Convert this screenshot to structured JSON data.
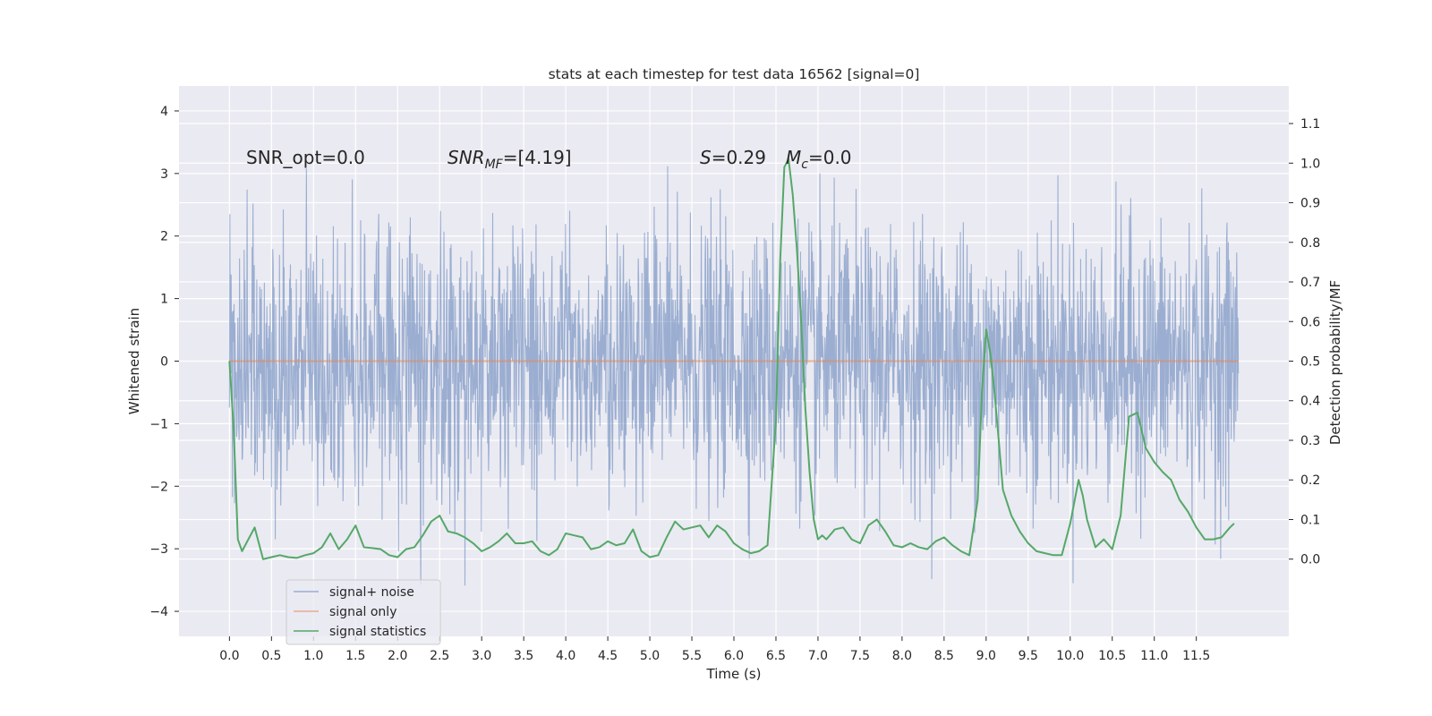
{
  "chart_data": {
    "type": "line",
    "title": "stats at each timestep for test data 16562 [signal=0]",
    "xlabel": "Time (s)",
    "ylabel": "Whitened strain",
    "y2label": "Detection probability/MF",
    "xlim": [
      -0.6,
      12.6
    ],
    "ylim": [
      -4.4,
      4.4
    ],
    "y2lim": [
      -0.195,
      1.195
    ],
    "xticks": [
      0.0,
      0.5,
      1.0,
      1.5,
      2.0,
      2.5,
      3.0,
      3.5,
      4.0,
      4.5,
      5.0,
      5.5,
      6.0,
      6.5,
      7.0,
      7.5,
      8.0,
      8.5,
      9.0,
      9.5,
      10.0,
      10.5,
      11.0,
      11.5
    ],
    "yticks": [
      -4,
      -3,
      -2,
      -1,
      0,
      1,
      2,
      3,
      4
    ],
    "y2ticks": [
      0.0,
      0.1,
      0.2,
      0.3,
      0.4,
      0.5,
      0.6,
      0.7,
      0.8,
      0.9,
      1.0,
      1.1
    ],
    "grid": true,
    "legend_position": "lower-left",
    "annotations": {
      "snr_opt": "SNR_opt=0.0",
      "snr_mf_main": "SNR",
      "snr_mf_sub": "MF",
      "snr_mf_value": "=[4.19]",
      "s_main": "S",
      "s_value": "=0.29",
      "mc_main": "M",
      "mc_sub": "c",
      "mc_value": "=0.0"
    },
    "series": [
      {
        "name": "signal+ noise",
        "axis": "left",
        "color": "#4c72b0",
        "opacity": 0.5,
        "t_range": [
          0.0,
          12.0
        ],
        "description_values": "whitened noise, approx. gaussian, sigma ~1, peaks to +3.9 and -4.0",
        "envelope_max": 3.95,
        "envelope_min": -4.05
      },
      {
        "name": "signal only",
        "axis": "left",
        "color": "#dd8452",
        "opacity": 0.6,
        "x": [
          0.0,
          12.0
        ],
        "y": [
          0.0,
          0.0
        ]
      },
      {
        "name": "signal statistics",
        "axis": "right",
        "color": "#55a868",
        "x": [
          0.0,
          0.05,
          0.1,
          0.15,
          0.2,
          0.3,
          0.4,
          0.5,
          0.6,
          0.7,
          0.8,
          0.9,
          1.0,
          1.1,
          1.2,
          1.3,
          1.4,
          1.5,
          1.6,
          1.7,
          1.8,
          1.9,
          2.0,
          2.1,
          2.2,
          2.3,
          2.4,
          2.5,
          2.6,
          2.7,
          2.8,
          2.9,
          3.0,
          3.1,
          3.2,
          3.3,
          3.4,
          3.5,
          3.6,
          3.7,
          3.8,
          3.9,
          4.0,
          4.1,
          4.2,
          4.3,
          4.4,
          4.5,
          4.6,
          4.7,
          4.8,
          4.9,
          5.0,
          5.1,
          5.2,
          5.3,
          5.4,
          5.5,
          5.6,
          5.7,
          5.8,
          5.9,
          6.0,
          6.1,
          6.2,
          6.3,
          6.4,
          6.5,
          6.55,
          6.6,
          6.65,
          6.7,
          6.75,
          6.8,
          6.85,
          6.9,
          6.95,
          7.0,
          7.05,
          7.1,
          7.2,
          7.3,
          7.4,
          7.5,
          7.6,
          7.7,
          7.8,
          7.9,
          8.0,
          8.1,
          8.2,
          8.3,
          8.4,
          8.5,
          8.6,
          8.7,
          8.8,
          8.9,
          8.95,
          9.0,
          9.05,
          9.1,
          9.15,
          9.2,
          9.3,
          9.4,
          9.5,
          9.6,
          9.7,
          9.8,
          9.9,
          10.0,
          10.1,
          10.15,
          10.2,
          10.3,
          10.4,
          10.5,
          10.6,
          10.7,
          10.8,
          10.9,
          11.0,
          11.1,
          11.2,
          11.3,
          11.4,
          11.5,
          11.6,
          11.7,
          11.8,
          11.9,
          11.95
        ],
        "y": [
          0.5,
          0.33,
          0.05,
          0.02,
          0.04,
          0.08,
          0.0,
          0.005,
          0.01,
          0.005,
          0.003,
          0.01,
          0.015,
          0.03,
          0.065,
          0.025,
          0.05,
          0.085,
          0.03,
          0.028,
          0.025,
          0.01,
          0.005,
          0.025,
          0.03,
          0.06,
          0.095,
          0.11,
          0.07,
          0.065,
          0.055,
          0.04,
          0.02,
          0.03,
          0.045,
          0.065,
          0.04,
          0.04,
          0.045,
          0.02,
          0.01,
          0.025,
          0.065,
          0.06,
          0.055,
          0.025,
          0.03,
          0.045,
          0.035,
          0.04,
          0.075,
          0.02,
          0.005,
          0.01,
          0.055,
          0.095,
          0.075,
          0.08,
          0.085,
          0.055,
          0.085,
          0.07,
          0.04,
          0.025,
          0.015,
          0.02,
          0.035,
          0.35,
          0.75,
          0.99,
          1.01,
          0.92,
          0.78,
          0.6,
          0.38,
          0.22,
          0.1,
          0.05,
          0.06,
          0.05,
          0.075,
          0.08,
          0.05,
          0.04,
          0.085,
          0.1,
          0.07,
          0.035,
          0.03,
          0.04,
          0.03,
          0.025,
          0.045,
          0.055,
          0.035,
          0.02,
          0.01,
          0.15,
          0.42,
          0.58,
          0.52,
          0.42,
          0.3,
          0.175,
          0.11,
          0.07,
          0.04,
          0.02,
          0.015,
          0.01,
          0.01,
          0.09,
          0.2,
          0.16,
          0.1,
          0.03,
          0.05,
          0.025,
          0.11,
          0.36,
          0.37,
          0.28,
          0.245,
          0.22,
          0.2,
          0.15,
          0.12,
          0.08,
          0.05,
          0.05,
          0.055,
          0.08,
          0.09
        ]
      }
    ]
  }
}
